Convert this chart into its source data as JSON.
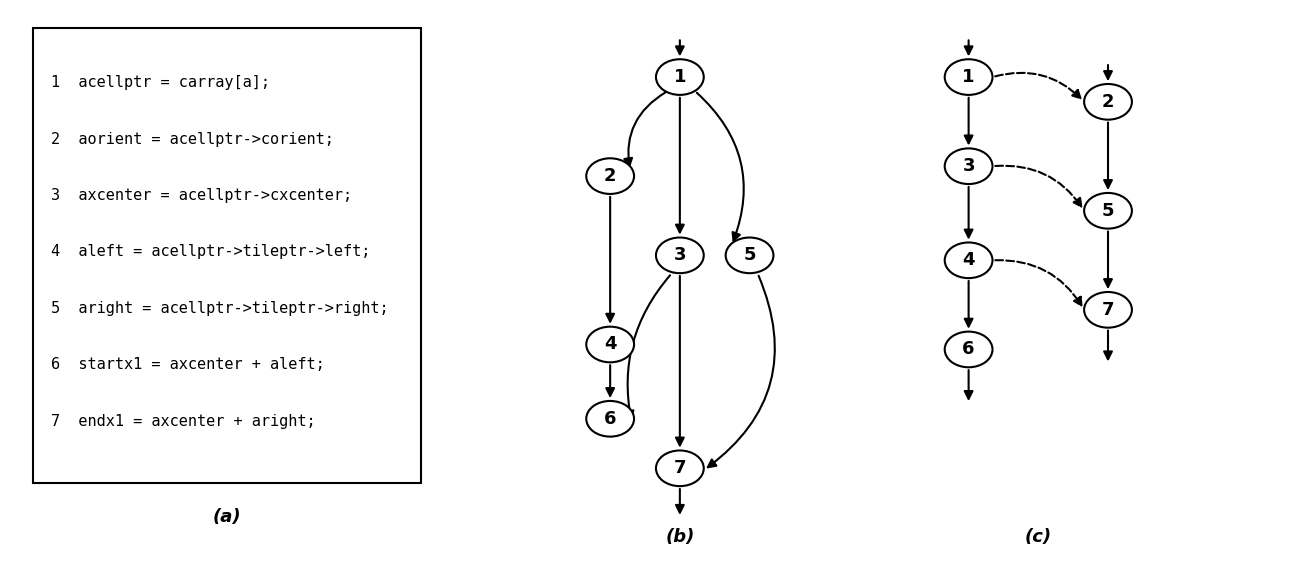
{
  "code_lines": [
    "1  acellptr = carray[a];",
    "2  aorient = acellptr->corient;",
    "3  axcenter = acellptr->cxcenter;",
    "4  aleft = acellptr->tileptr->left;",
    "5  aright = acellptr->tileptr->right;",
    "6  startx1 = axcenter + aleft;",
    "7  endx1 = axcenter + aright;"
  ],
  "label_a": "(a)",
  "label_b": "(b)",
  "label_c": "(c)",
  "bg_color": "#ffffff",
  "text_color": "#000000"
}
